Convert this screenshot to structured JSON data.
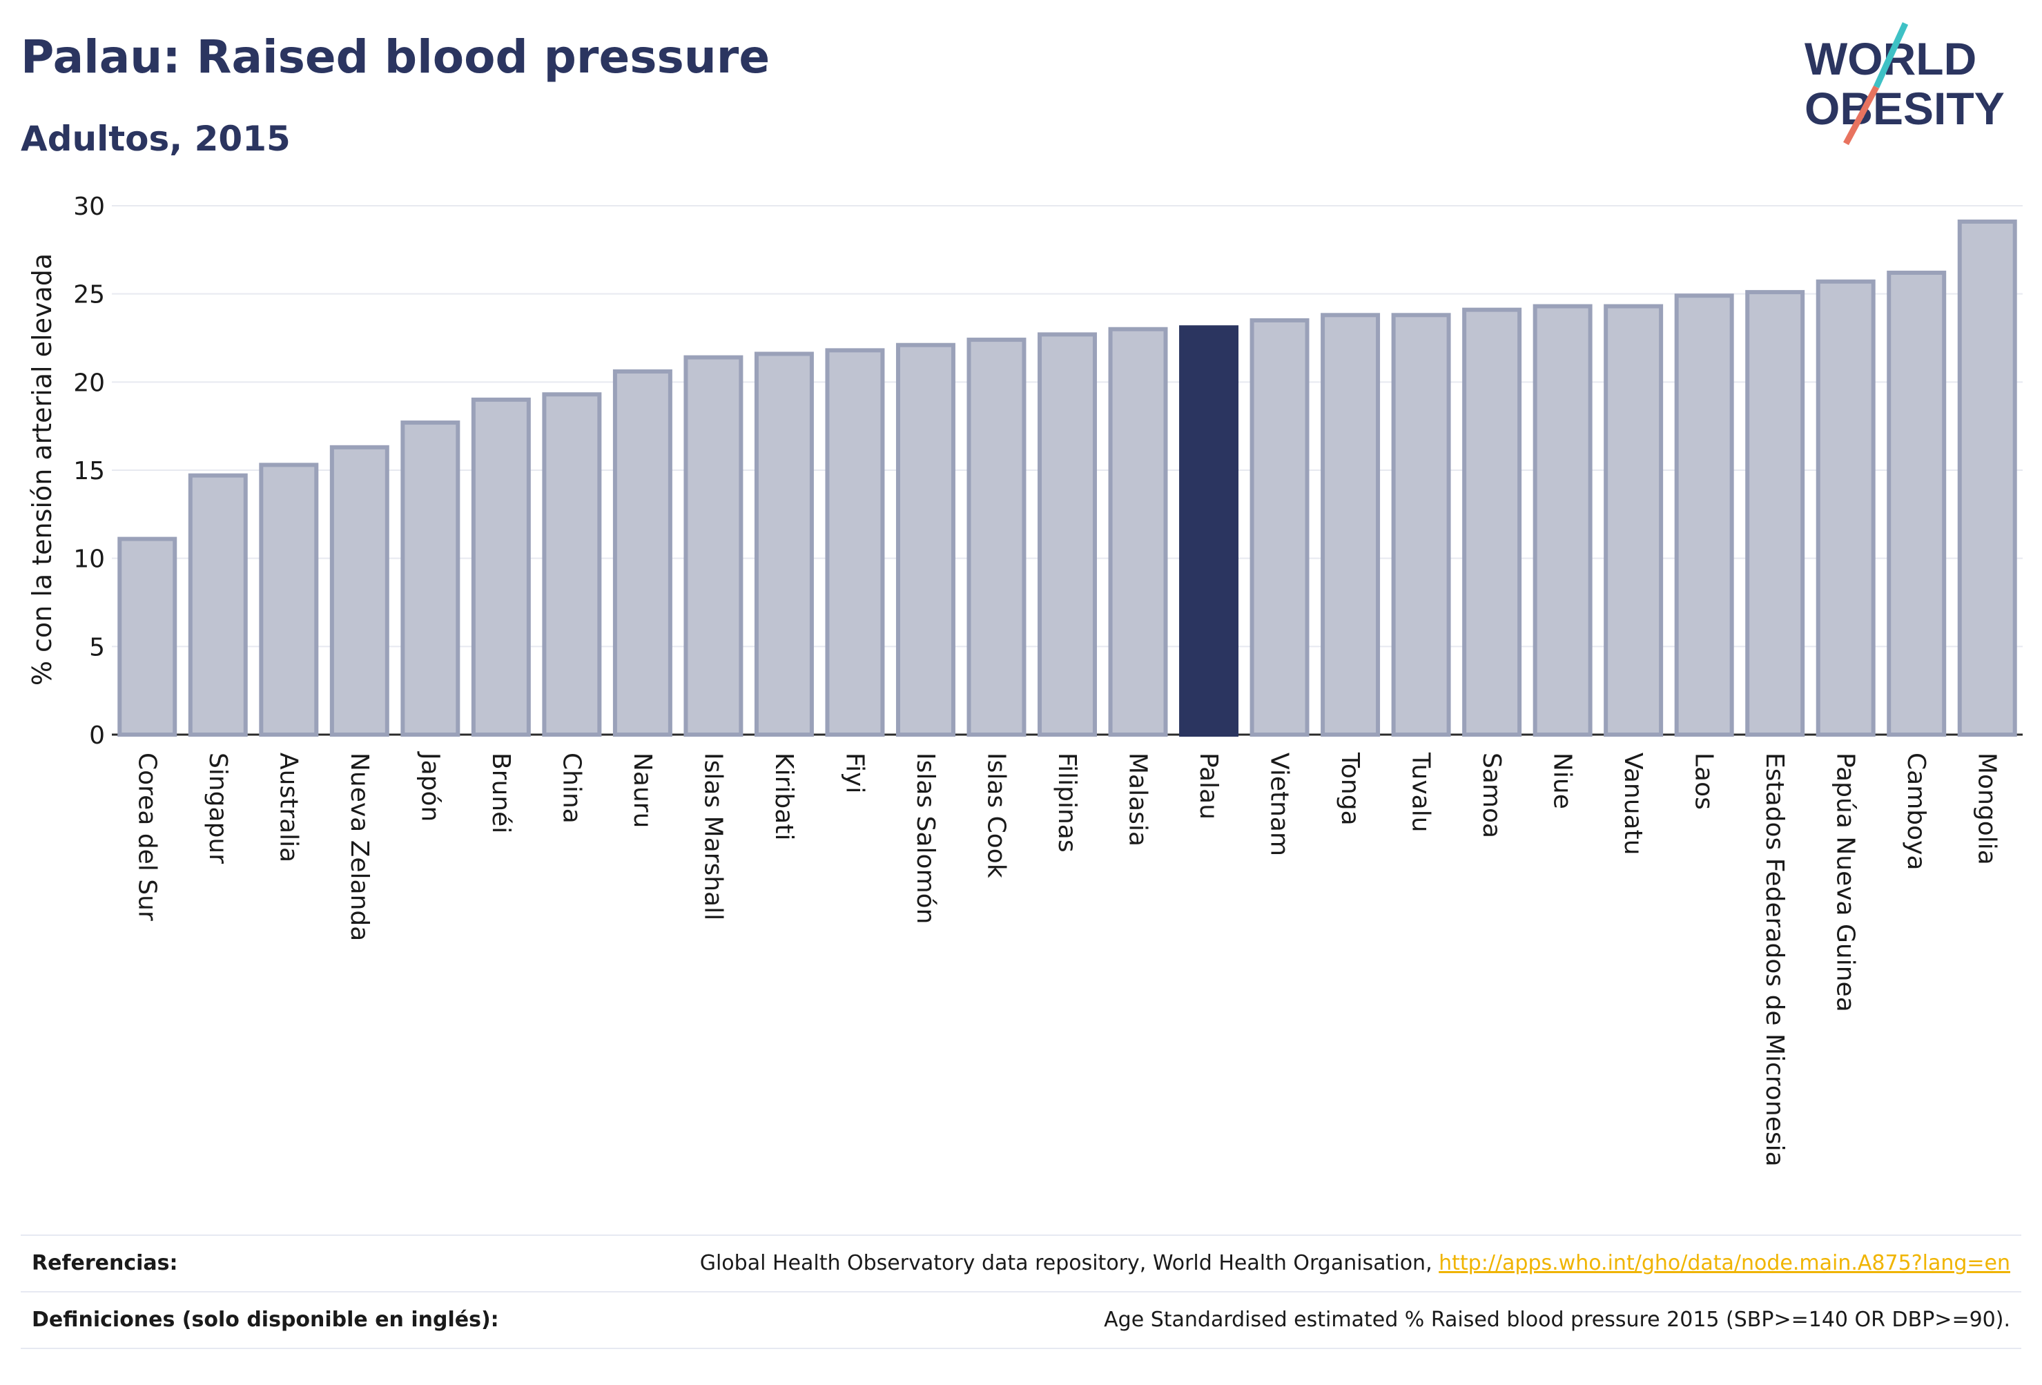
{
  "header": {
    "title": "Palau: Raised blood pressure",
    "subtitle": "Adultos, 2015"
  },
  "logo": {
    "line1": "WORLD",
    "line2": "OBESITY",
    "colors": {
      "text": "#2b3560",
      "slash_top": "#3ec1c5",
      "slash_bottom": "#e8735f"
    }
  },
  "colors": {
    "bar": "#bfc3d1",
    "bar_border": "#9aa1b9",
    "highlight": "#2b3560",
    "grid": "#e7e9f0"
  },
  "chart_data": {
    "type": "bar",
    "ylabel": "% con la tensión arterial elevada",
    "xlabel": "",
    "ylim": [
      0,
      30
    ],
    "yticks": [
      0,
      5,
      10,
      15,
      20,
      25,
      30
    ],
    "grid": true,
    "highlight": "Palau",
    "categories": [
      "Corea del Sur",
      "Singapur",
      "Australia",
      "Nueva Zelanda",
      "Japón",
      "Brunéi",
      "China",
      "Nauru",
      "Islas Marshall",
      "Kiribati",
      "Fiyi",
      "Islas Salomón",
      "Islas Cook",
      "Filipinas",
      "Malasia",
      "Palau",
      "Vietnam",
      "Tonga",
      "Tuvalu",
      "Samoa",
      "Niue",
      "Vanuatu",
      "Laos",
      "Estados Federados de Micronesia",
      "Papúa Nueva Guinea",
      "Camboya",
      "Mongolia"
    ],
    "values": [
      11.1,
      14.7,
      15.3,
      16.3,
      17.7,
      19.0,
      19.3,
      20.6,
      21.4,
      21.6,
      21.8,
      22.1,
      22.4,
      22.7,
      23.0,
      23.1,
      23.5,
      23.8,
      23.8,
      24.1,
      24.3,
      24.3,
      24.9,
      25.1,
      25.7,
      26.2,
      29.1
    ]
  },
  "footer": {
    "references_label": "Referencias:",
    "references_text": "Global Health Observatory data repository, World Health Organisation, ",
    "references_link": "http://apps.who.int/gho/data/node.main.A875?lang=en",
    "definitions_label": "Definiciones (solo disponible en inglés):",
    "definitions_text": "Age Standardised estimated % Raised blood pressure 2015 (SBP>=140 OR DBP>=90)."
  }
}
